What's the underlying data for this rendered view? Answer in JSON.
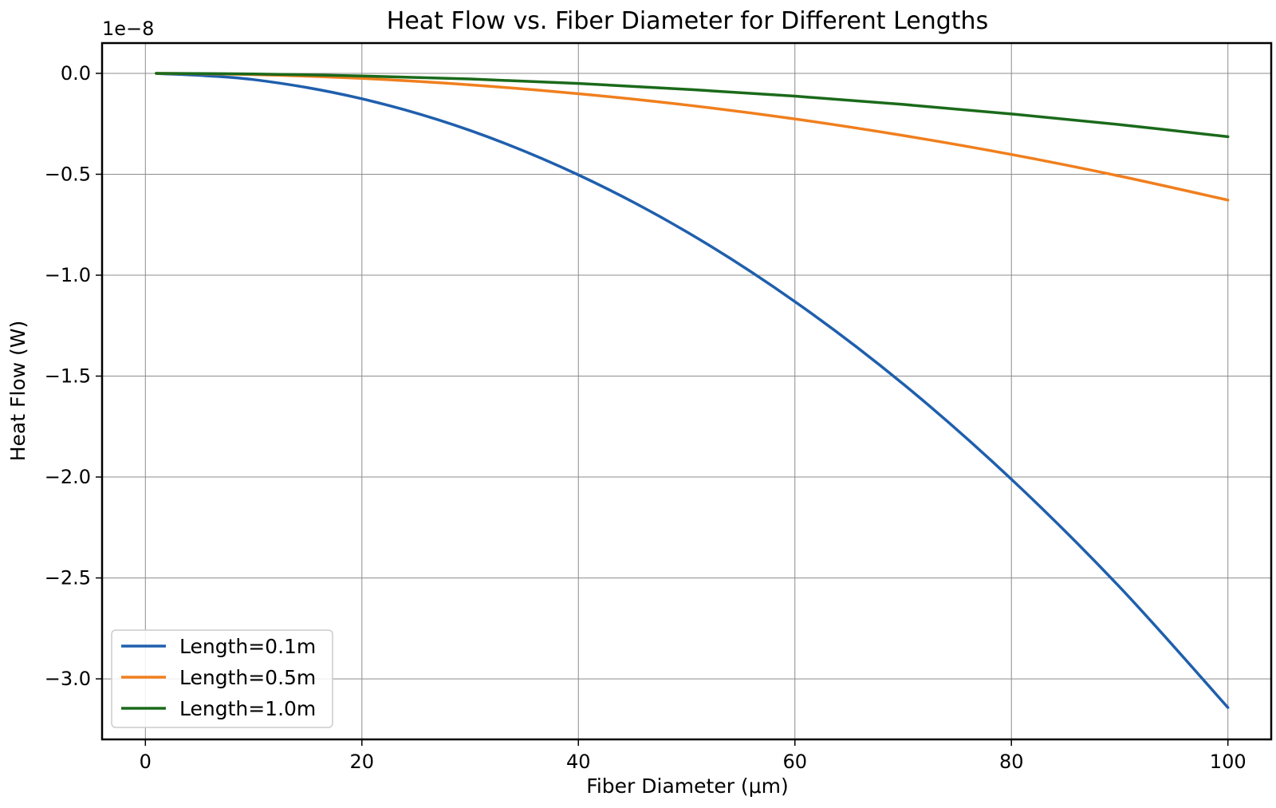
{
  "chart_data": {
    "type": "line",
    "title": "Heat Flow vs. Fiber Diameter for Different Lengths",
    "xlabel": "Fiber Diameter (μm)",
    "ylabel": "Heat Flow (W)",
    "y_offset_label": "1e−8",
    "xlim": [
      -4,
      104
    ],
    "ylim": [
      -3.3,
      0.15
    ],
    "grid": true,
    "legend_position": "lower-left",
    "x_ticks": [
      {
        "value": 0,
        "label": "0"
      },
      {
        "value": 20,
        "label": "20"
      },
      {
        "value": 40,
        "label": "40"
      },
      {
        "value": 60,
        "label": "60"
      },
      {
        "value": 80,
        "label": "80"
      },
      {
        "value": 100,
        "label": "100"
      }
    ],
    "y_ticks": [
      {
        "value": 0.0,
        "label": "0.0"
      },
      {
        "value": -0.5,
        "label": "−0.5"
      },
      {
        "value": -1.0,
        "label": "−1.0"
      },
      {
        "value": -1.5,
        "label": "−1.5"
      },
      {
        "value": -2.0,
        "label": "−2.0"
      },
      {
        "value": -2.5,
        "label": "−2.5"
      },
      {
        "value": -3.0,
        "label": "−3.0"
      }
    ],
    "x": [
      1,
      10,
      20,
      30,
      40,
      50,
      60,
      70,
      80,
      90,
      100
    ],
    "series": [
      {
        "name": "Length=0.1m",
        "color": "#1f5fad",
        "values": [
          0.0,
          -0.031,
          -0.126,
          -0.283,
          -0.503,
          -0.785,
          -1.131,
          -1.539,
          -2.011,
          -2.545,
          -3.142
        ]
      },
      {
        "name": "Length=0.5m",
        "color": "#f07f1e",
        "values": [
          0.0,
          -0.006,
          -0.025,
          -0.057,
          -0.101,
          -0.157,
          -0.226,
          -0.308,
          -0.402,
          -0.509,
          -0.628
        ]
      },
      {
        "name": "Length=1.0m",
        "color": "#1a6a1a",
        "values": [
          0.0,
          -0.003,
          -0.013,
          -0.028,
          -0.05,
          -0.079,
          -0.113,
          -0.154,
          -0.201,
          -0.254,
          -0.314
        ]
      }
    ]
  }
}
